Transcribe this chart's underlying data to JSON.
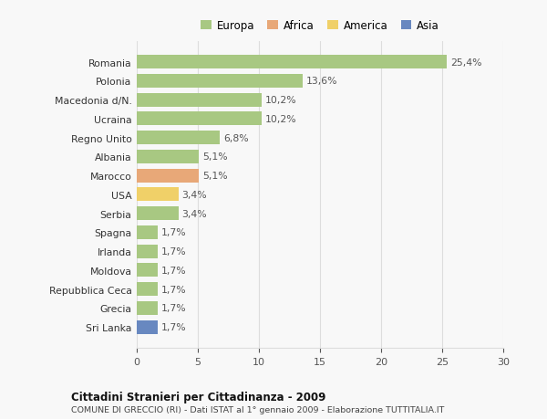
{
  "categories": [
    "Romania",
    "Polonia",
    "Macedonia d/N.",
    "Ucraina",
    "Regno Unito",
    "Albania",
    "Marocco",
    "USA",
    "Serbia",
    "Spagna",
    "Irlanda",
    "Moldova",
    "Repubblica Ceca",
    "Grecia",
    "Sri Lanka"
  ],
  "values": [
    25.4,
    13.6,
    10.2,
    10.2,
    6.8,
    5.1,
    5.1,
    3.4,
    3.4,
    1.7,
    1.7,
    1.7,
    1.7,
    1.7,
    1.7
  ],
  "labels": [
    "25,4%",
    "13,6%",
    "10,2%",
    "10,2%",
    "6,8%",
    "5,1%",
    "5,1%",
    "3,4%",
    "3,4%",
    "1,7%",
    "1,7%",
    "1,7%",
    "1,7%",
    "1,7%",
    "1,7%"
  ],
  "colors": [
    "#a8c882",
    "#a8c882",
    "#a8c882",
    "#a8c882",
    "#a8c882",
    "#a8c882",
    "#e8a878",
    "#f0d068",
    "#a8c882",
    "#a8c882",
    "#a8c882",
    "#a8c882",
    "#a8c882",
    "#a8c882",
    "#6888c0"
  ],
  "legend_labels": [
    "Europa",
    "Africa",
    "America",
    "Asia"
  ],
  "legend_colors": [
    "#a8c882",
    "#e8a878",
    "#f0d068",
    "#6888c0"
  ],
  "title": "Cittadini Stranieri per Cittadinanza - 2009",
  "subtitle": "COMUNE DI GRECCIO (RI) - Dati ISTAT al 1° gennaio 2009 - Elaborazione TUTTITALIA.IT",
  "xlim": [
    0,
    30
  ],
  "xticks": [
    0,
    5,
    10,
    15,
    20,
    25,
    30
  ],
  "bg_color": "#f8f8f8",
  "grid_color": "#dddddd"
}
